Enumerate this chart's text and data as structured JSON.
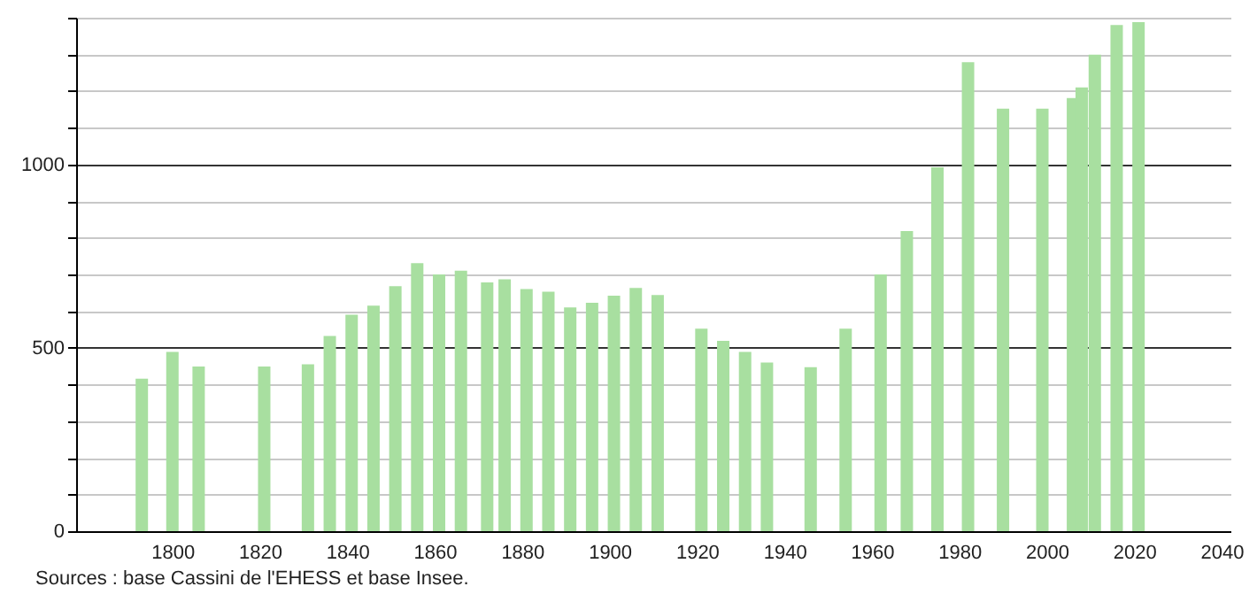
{
  "chart_data": {
    "type": "bar",
    "x": [
      1793,
      1800,
      1806,
      1821,
      1831,
      1836,
      1841,
      1846,
      1851,
      1856,
      1861,
      1866,
      1872,
      1876,
      1881,
      1886,
      1891,
      1896,
      1901,
      1906,
      1911,
      1921,
      1926,
      1931,
      1936,
      1946,
      1954,
      1962,
      1968,
      1975,
      1982,
      1990,
      1999,
      2006,
      2008,
      2011,
      2016,
      2021
    ],
    "values": [
      416,
      489,
      449,
      449,
      455,
      532,
      590,
      615,
      668,
      731,
      700,
      710,
      678,
      687,
      660,
      653,
      610,
      623,
      642,
      663,
      644,
      552,
      519,
      489,
      460,
      447,
      552,
      700,
      818,
      992,
      1279,
      1152,
      1152,
      1181,
      1210,
      1299,
      1380,
      1388
    ],
    "color": "#a8dfa0",
    "xlim": [
      1780,
      2040
    ],
    "xticks": [
      1800,
      1820,
      1840,
      1860,
      1880,
      1900,
      1920,
      1940,
      1960,
      1980,
      2000,
      2020,
      2040
    ],
    "ylim": [
      0,
      1400
    ],
    "yticks": [
      0,
      {
        "value": 100,
        "label": null
      },
      {
        "value": 200,
        "label": null
      },
      {
        "value": 300,
        "label": null
      },
      {
        "value": 400,
        "label": null
      },
      500,
      {
        "value": 600,
        "label": null
      },
      {
        "value": 700,
        "label": null
      },
      {
        "value": 800,
        "label": null
      },
      {
        "value": 900,
        "label": null
      },
      1000,
      {
        "value": 1100,
        "label": null
      },
      {
        "value": 1200,
        "label": null
      },
      {
        "value": 1300,
        "label": null
      },
      {
        "value": 1400,
        "label": null
      }
    ],
    "grid": "y",
    "annotations": [
      "Sources : base Cassini de l'EHESS et base Insee."
    ]
  }
}
